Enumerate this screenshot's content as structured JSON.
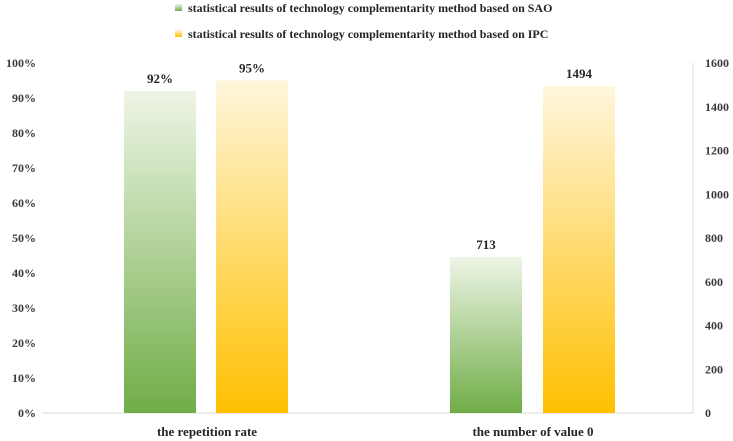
{
  "chart_data": {
    "type": "bar",
    "legend_position": "top",
    "grid": false,
    "categories": [
      "the repetition rate",
      "the number of value 0"
    ],
    "series": [
      {
        "name": "statistical results of technology complementarity method  based on SAO",
        "color": "#70ad47",
        "values": [
          92,
          713
        ],
        "labels": [
          "92%",
          "713"
        ]
      },
      {
        "name": "statistical results of technology complementarity method  based on IPC",
        "color": "#ffc000",
        "values": [
          95,
          1494
        ],
        "labels": [
          "95%",
          "1494"
        ]
      }
    ],
    "axes": [
      {
        "side": "left",
        "min": 0,
        "max": 100,
        "unit": "%",
        "ticks": [
          "0%",
          "10%",
          "20%",
          "30%",
          "40%",
          "50%",
          "60%",
          "70%",
          "80%",
          "90%",
          "100%"
        ],
        "applies_to_category": 0
      },
      {
        "side": "right",
        "min": 0,
        "max": 1600,
        "ticks": [
          "0",
          "200",
          "400",
          "600",
          "800",
          "1000",
          "1200",
          "1400",
          "1600"
        ],
        "applies_to_category": 1
      }
    ]
  }
}
